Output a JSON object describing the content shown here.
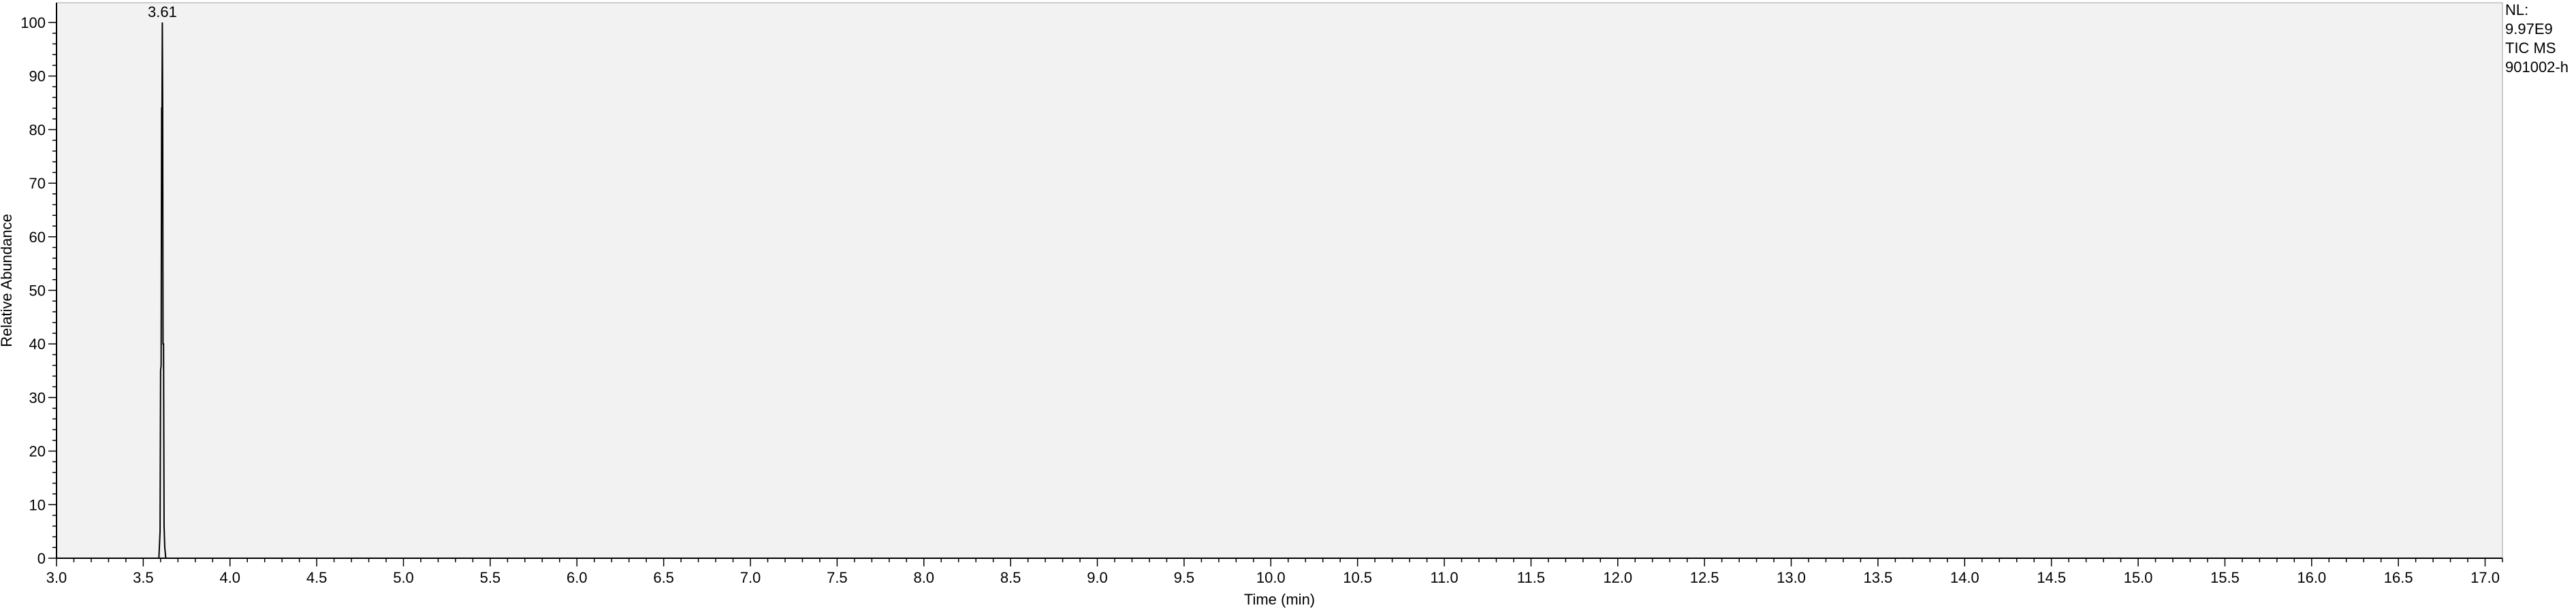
{
  "info": {
    "lines": [
      "NL:",
      "9.97E9",
      "TIC  MS",
      "901002-h"
    ]
  },
  "chart_data": {
    "type": "line",
    "xlabel": "Time (min)",
    "ylabel": "Relative Abundance",
    "xlim": [
      3.0,
      17.1
    ],
    "ylim": [
      0,
      100
    ],
    "x_ticks": [
      3.0,
      3.5,
      4.0,
      4.5,
      5.0,
      5.5,
      6.0,
      6.5,
      7.0,
      7.5,
      8.0,
      8.5,
      9.0,
      9.5,
      10.0,
      10.5,
      11.0,
      11.5,
      12.0,
      12.5,
      13.0,
      13.5,
      14.0,
      14.5,
      15.0,
      15.5,
      16.0,
      16.5,
      17.0
    ],
    "x_tick_labels": [
      "3.0",
      "3.5",
      "4.0",
      "4.5",
      "5.0",
      "5.5",
      "6.0",
      "6.5",
      "7.0",
      "7.5",
      "8.0",
      "8.5",
      "9.0",
      "9.5",
      "10.0",
      "10.5",
      "11.0",
      "11.5",
      "12.0",
      "12.5",
      "13.0",
      "13.5",
      "14.0",
      "14.5",
      "15.0",
      "15.5",
      "16.0",
      "16.5",
      "17.0"
    ],
    "y_ticks": [
      0,
      10,
      20,
      30,
      40,
      50,
      60,
      70,
      80,
      90,
      100
    ],
    "y_tick_labels": [
      "0",
      "10",
      "20",
      "30",
      "40",
      "50",
      "60",
      "70",
      "80",
      "90",
      "100"
    ],
    "series": [
      {
        "color": "#000000",
        "x": [
          3.0,
          3.59,
          3.597,
          3.6,
          3.603,
          3.606,
          3.608,
          3.61,
          3.612,
          3.614,
          3.617,
          3.62,
          3.624,
          3.63,
          3.64,
          17.1
        ],
        "y": [
          0,
          0,
          5,
          35,
          36,
          84,
          84,
          100,
          84,
          40,
          40,
          6,
          2,
          0,
          0,
          0
        ]
      }
    ],
    "peaks": [
      {
        "x": 3.61,
        "y": 100,
        "label": "3.61"
      }
    ],
    "plot_background": "#f2f2f2",
    "grid": false,
    "legend": "none"
  }
}
